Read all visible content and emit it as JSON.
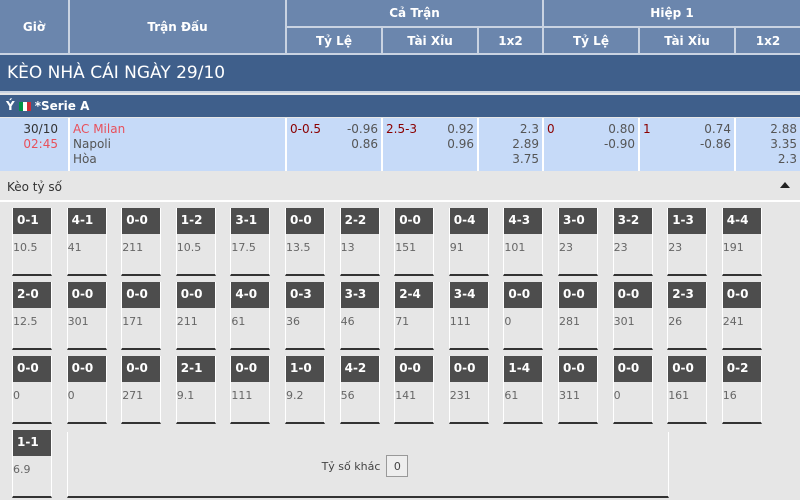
{
  "header": {
    "gio": "Giờ",
    "tran_dau": "Trận Đấu",
    "ca_tran": "Cả Trận",
    "hiep1": "Hiệp 1",
    "ty_le": "Tỷ Lệ",
    "tai_xiu": "Tài Xỉu",
    "x12": "1x2"
  },
  "title": "KÈO NHÀ CÁI NGÀY 29/10",
  "league": {
    "country": "Ý",
    "name": "*Serie A",
    "flag_colors": [
      "#009246",
      "#ffffff",
      "#ce2b37"
    ]
  },
  "match": {
    "date": "30/10",
    "time": "02:45",
    "home": "AC Milan",
    "away": "Napoli",
    "draw": "Hòa",
    "ft_hdp": {
      "line": "0-0.5",
      "home": "-0.96",
      "away": "0.86"
    },
    "ft_ou": {
      "line": "2.5-3",
      "over": "0.92",
      "under": "0.96"
    },
    "ft_1x2": [
      "2.3",
      "2.89",
      "3.75"
    ],
    "h1_hdp": {
      "line": "0",
      "home": "0.80",
      "away": "-0.90"
    },
    "h1_ou": {
      "line": "1",
      "over": "0.74",
      "under": "-0.86"
    },
    "h1_1x2": [
      "2.88",
      "3.35",
      "2.3"
    ]
  },
  "correct_score": {
    "label": "Kèo tỷ số",
    "rows": [
      [
        [
          "0-1",
          "10.5"
        ],
        [
          "4-1",
          "41"
        ],
        [
          "0-0",
          "211"
        ],
        [
          "1-2",
          "10.5"
        ],
        [
          "3-1",
          "17.5"
        ],
        [
          "0-0",
          "13.5"
        ],
        [
          "2-2",
          "13"
        ],
        [
          "0-0",
          "151"
        ],
        [
          "0-4",
          "91"
        ],
        [
          "4-3",
          "101"
        ],
        [
          "3-0",
          "23"
        ],
        [
          "3-2",
          "23"
        ],
        [
          "1-3",
          "23"
        ],
        [
          "4-4",
          "191"
        ]
      ],
      [
        [
          "2-0",
          "12.5"
        ],
        [
          "0-0",
          "301"
        ],
        [
          "0-0",
          "171"
        ],
        [
          "0-0",
          "211"
        ],
        [
          "4-0",
          "61"
        ],
        [
          "0-3",
          "36"
        ],
        [
          "3-3",
          "46"
        ],
        [
          "2-4",
          "71"
        ],
        [
          "3-4",
          "111"
        ],
        [
          "0-0",
          "0"
        ],
        [
          "0-0",
          "281"
        ],
        [
          "0-0",
          "301"
        ],
        [
          "2-3",
          "26"
        ],
        [
          "0-0",
          "241"
        ]
      ],
      [
        [
          "0-0",
          "0"
        ],
        [
          "0-0",
          "0"
        ],
        [
          "0-0",
          "271"
        ],
        [
          "2-1",
          "9.1"
        ],
        [
          "0-0",
          "111"
        ],
        [
          "1-0",
          "9.2"
        ],
        [
          "4-2",
          "56"
        ],
        [
          "0-0",
          "141"
        ],
        [
          "0-0",
          "231"
        ],
        [
          "1-4",
          "61"
        ],
        [
          "0-0",
          "311"
        ],
        [
          "0-0",
          "0"
        ],
        [
          "0-0",
          "161"
        ],
        [
          "0-2",
          "16"
        ]
      ],
      [
        [
          "1-1",
          "6.9"
        ]
      ]
    ],
    "other_label": "Tỷ số khác",
    "other_value": "0"
  }
}
